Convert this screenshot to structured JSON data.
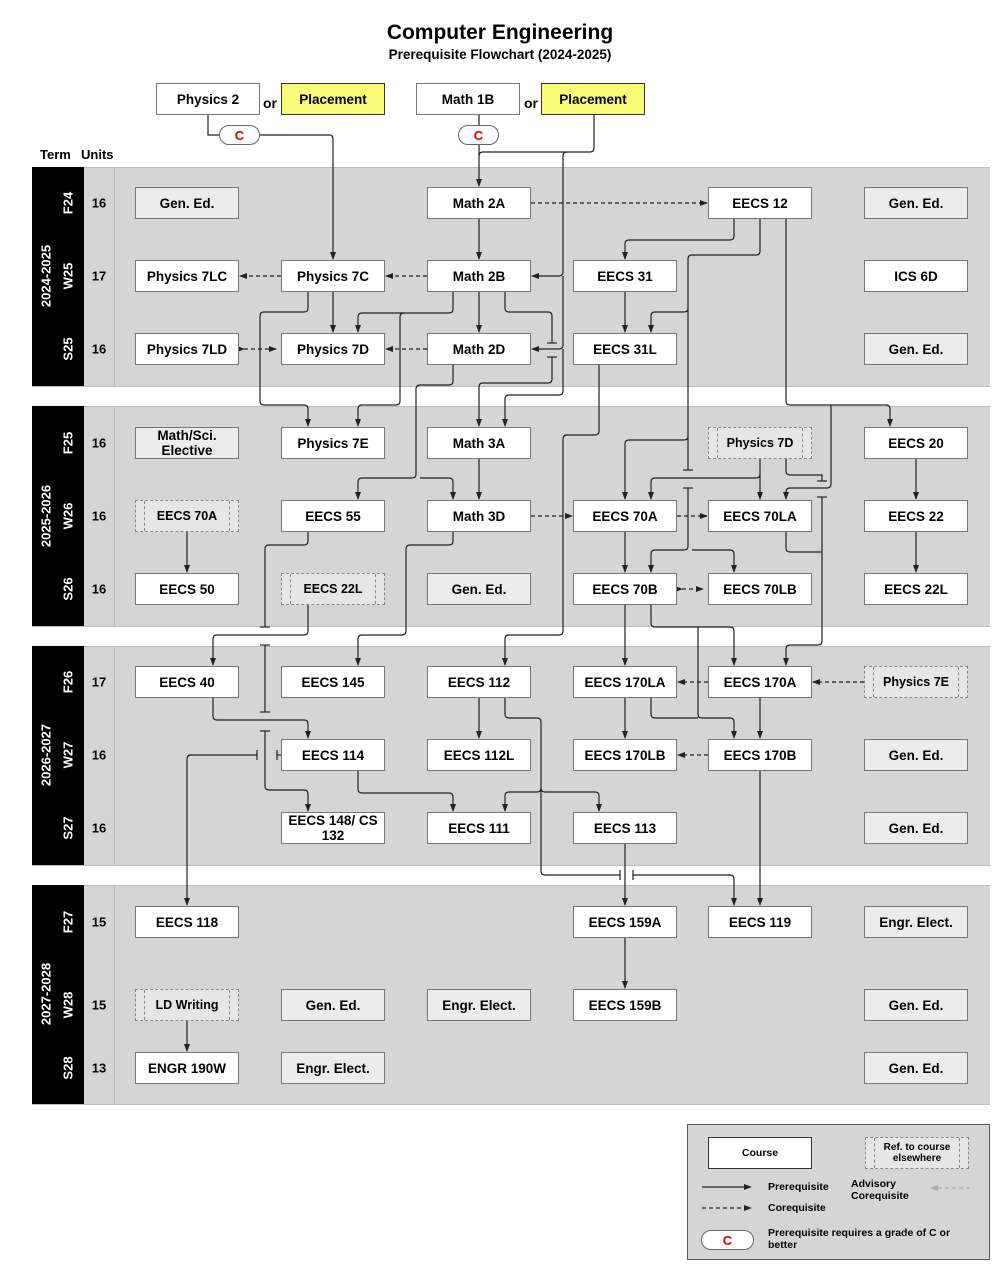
{
  "header": {
    "title": "Computer Engineering",
    "subtitle": "Prerequisite Flowchart (2024-2025)"
  },
  "column_headers": {
    "term": "Term",
    "units": "Units"
  },
  "entry": {
    "physics2": "Physics 2",
    "or1": "or",
    "placement1": "Placement",
    "math1b": "Math 1B",
    "or2": "or",
    "placement2": "Placement",
    "grade_c": "C"
  },
  "years": [
    {
      "label": "2024-2025",
      "terms": [
        {
          "term": "F24",
          "units": "16"
        },
        {
          "term": "W25",
          "units": "17"
        },
        {
          "term": "S25",
          "units": "16"
        }
      ]
    },
    {
      "label": "2025-2026",
      "terms": [
        {
          "term": "F25",
          "units": "16"
        },
        {
          "term": "W26",
          "units": "16"
        },
        {
          "term": "S26",
          "units": "16"
        }
      ]
    },
    {
      "label": "2026-2027",
      "terms": [
        {
          "term": "F26",
          "units": "17"
        },
        {
          "term": "W27",
          "units": "16"
        },
        {
          "term": "S27",
          "units": "16"
        }
      ]
    },
    {
      "label": "2027-2028",
      "terms": [
        {
          "term": "F27",
          "units": "15"
        },
        {
          "term": "W28",
          "units": "15"
        },
        {
          "term": "S28",
          "units": "13"
        }
      ]
    }
  ],
  "courses": [
    {
      "label": "Gen. Ed.",
      "kind": "ge"
    },
    {
      "label": "Math 2A",
      "kind": "course"
    },
    {
      "label": "EECS 12",
      "kind": "course"
    },
    {
      "label": "Gen. Ed.",
      "kind": "ge"
    },
    {
      "label": "Physics 7LC",
      "kind": "course"
    },
    {
      "label": "Physics 7C",
      "kind": "course"
    },
    {
      "label": "Math 2B",
      "kind": "course"
    },
    {
      "label": "EECS 31",
      "kind": "course"
    },
    {
      "label": "ICS 6D",
      "kind": "course"
    },
    {
      "label": "Physics 7LD",
      "kind": "course"
    },
    {
      "label": "Physics 7D",
      "kind": "course"
    },
    {
      "label": "Math 2D",
      "kind": "course"
    },
    {
      "label": "EECS 31L",
      "kind": "course"
    },
    {
      "label": "Gen. Ed.",
      "kind": "ge"
    },
    {
      "label": "Math/Sci. Elective",
      "kind": "ge"
    },
    {
      "label": "Physics 7E",
      "kind": "course"
    },
    {
      "label": "Math 3A",
      "kind": "course"
    },
    {
      "label": "Physics 7D",
      "kind": "ref"
    },
    {
      "label": "EECS 20",
      "kind": "course"
    },
    {
      "label": "EECS 70A",
      "kind": "ref"
    },
    {
      "label": "EECS 55",
      "kind": "course"
    },
    {
      "label": "Math 3D",
      "kind": "course"
    },
    {
      "label": "EECS 70A",
      "kind": "course"
    },
    {
      "label": "EECS 70LA",
      "kind": "course"
    },
    {
      "label": "EECS 22",
      "kind": "course"
    },
    {
      "label": "EECS 50",
      "kind": "course"
    },
    {
      "label": "EECS 22L",
      "kind": "ref"
    },
    {
      "label": "Gen. Ed.",
      "kind": "ge"
    },
    {
      "label": "EECS 70B",
      "kind": "course"
    },
    {
      "label": "EECS 70LB",
      "kind": "course"
    },
    {
      "label": "EECS 22L",
      "kind": "course"
    },
    {
      "label": "EECS 40",
      "kind": "course"
    },
    {
      "label": "EECS 145",
      "kind": "course"
    },
    {
      "label": "EECS 112",
      "kind": "course"
    },
    {
      "label": "EECS 170LA",
      "kind": "course"
    },
    {
      "label": "EECS 170A",
      "kind": "course"
    },
    {
      "label": "Physics 7E",
      "kind": "ref"
    },
    {
      "label": "EECS 114",
      "kind": "course"
    },
    {
      "label": "EECS 112L",
      "kind": "course"
    },
    {
      "label": "EECS 170LB",
      "kind": "course"
    },
    {
      "label": "EECS 170B",
      "kind": "course"
    },
    {
      "label": "Gen. Ed.",
      "kind": "ge"
    },
    {
      "label": "EECS 148/ CS 132",
      "kind": "course"
    },
    {
      "label": "EECS 111",
      "kind": "course"
    },
    {
      "label": "EECS 113",
      "kind": "course"
    },
    {
      "label": "Gen. Ed.",
      "kind": "ge"
    },
    {
      "label": "EECS 118",
      "kind": "course"
    },
    {
      "label": "EECS 159A",
      "kind": "course"
    },
    {
      "label": "EECS 119",
      "kind": "course"
    },
    {
      "label": "Engr. Elect.",
      "kind": "ge"
    },
    {
      "label": "LD Writing",
      "kind": "ref"
    },
    {
      "label": "Gen. Ed.",
      "kind": "ge"
    },
    {
      "label": "Engr. Elect.",
      "kind": "ge"
    },
    {
      "label": "EECS 159B",
      "kind": "course"
    },
    {
      "label": "Gen. Ed.",
      "kind": "ge"
    },
    {
      "label": "ENGR 190W",
      "kind": "course"
    },
    {
      "label": "Engr. Elect.",
      "kind": "ge"
    },
    {
      "label": "Gen. Ed.",
      "kind": "ge"
    }
  ],
  "legend": {
    "course": "Course",
    "ref": "Ref. to course elsewhere",
    "prerequisite": "Prerequisite",
    "corequisite": "Corequisite",
    "advisory": "Advisory Corequisite",
    "grade_c": "C",
    "grade_c_desc": "Prerequisite requires a grade of C or better"
  },
  "colors": {
    "band": "#d5d5d5",
    "placement": "#fbfb7a",
    "grade": "#dd0000",
    "term_column": "#000000"
  }
}
